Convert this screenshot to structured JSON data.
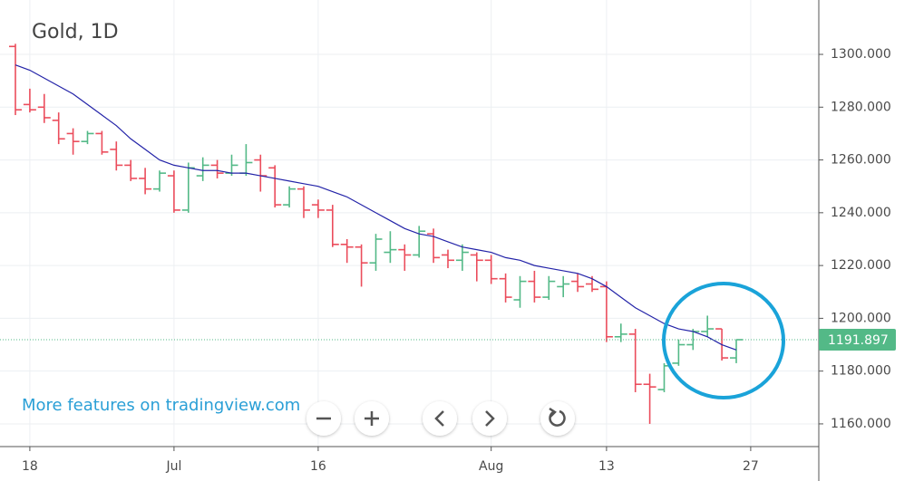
{
  "chart_data": {
    "type": "ohlc",
    "title": "Gold, 1D",
    "footer_text": "More features on tradingview.com",
    "categories": [
      null,
      "18",
      null,
      null,
      null,
      null,
      null,
      null,
      null,
      null,
      null,
      "Jul",
      null,
      null,
      null,
      null,
      null,
      null,
      null,
      null,
      null,
      "16",
      null,
      null,
      null,
      null,
      null,
      null,
      null,
      null,
      null,
      null,
      null,
      "Aug",
      null,
      null,
      null,
      null,
      null,
      null,
      null,
      "13",
      null,
      null,
      null,
      null,
      null,
      null,
      null,
      null,
      null,
      "27"
    ],
    "open": [
      1303,
      1281,
      1280,
      1275,
      1270,
      1267,
      1270,
      1264,
      1258,
      1253,
      1249,
      1254,
      1241,
      1254,
      1258,
      1255,
      1255,
      1260,
      1257,
      1243,
      1249,
      1243,
      1241,
      1228,
      1227,
      1221,
      1225,
      1226,
      1224,
      1232,
      1224,
      1222,
      1224,
      1222,
      1215,
      1207,
      1214,
      1208,
      1212,
      1214,
      1213,
      1212,
      1193,
      1194,
      1175,
      1173,
      1183,
      1190,
      1195,
      1196,
      1185,
      null
    ],
    "high": [
      1304,
      1287,
      1285,
      1278,
      1272,
      1271,
      1271,
      1267,
      1260,
      1257,
      1256,
      1256,
      1259,
      1261,
      1260,
      1262,
      1266,
      1262,
      1258,
      1250,
      1250,
      1245,
      1243,
      1230,
      1228,
      1232,
      1233,
      1228,
      1235,
      1234,
      1226,
      1228,
      1225,
      1224,
      1217,
      1216,
      1218,
      1216,
      1216,
      1217,
      1216,
      1214,
      1198,
      1196,
      1179,
      1183,
      1192,
      1196,
      1201,
      1196,
      1192,
      null
    ],
    "low": [
      1277,
      1278,
      1274,
      1266,
      1262,
      1266,
      1262,
      1256,
      1252,
      1247,
      1248,
      1240,
      1240,
      1252,
      1253,
      1254,
      1254,
      1248,
      1242,
      1242,
      1238,
      1238,
      1227,
      1221,
      1212,
      1218,
      1221,
      1218,
      1223,
      1221,
      1219,
      1218,
      1214,
      1213,
      1206,
      1204,
      1206,
      1207,
      1208,
      1210,
      1210,
      1191,
      1191,
      1172,
      1160,
      1172,
      1182,
      1188,
      1193,
      1184,
      1183,
      null
    ],
    "close": [
      1279,
      1279,
      1276,
      1268,
      1267,
      1270,
      1263,
      1258,
      1253,
      1249,
      1255,
      1241,
      1257,
      1258,
      1255,
      1258,
      1259,
      1254,
      1243,
      1249,
      1241,
      1241,
      1228,
      1227,
      1221,
      1230,
      1226,
      1224,
      1233,
      1223,
      1222,
      1225,
      1222,
      1215,
      1208,
      1214,
      1208,
      1214,
      1213,
      1212,
      1211,
      1193,
      1194,
      1175,
      1174,
      1182,
      1190,
      1195,
      1196,
      1185,
      1191.897,
      null
    ],
    "up_color": "#53b987",
    "down_color": "#eb4d5c",
    "moving_average": {
      "color": "#2323a8",
      "values": [
        1296,
        1294,
        1291,
        1288,
        1285,
        1281,
        1277,
        1273,
        1268,
        1264,
        1260,
        1258,
        1257,
        1256,
        1256,
        1255,
        1255,
        1254,
        1253,
        1252,
        1251,
        1250,
        1248,
        1246,
        1243,
        1240,
        1237,
        1234,
        1232,
        1231,
        1229,
        1227,
        1226,
        1225,
        1223,
        1222,
        1220,
        1219,
        1218,
        1217,
        1215,
        1212,
        1208,
        1204,
        1201,
        1198,
        1196,
        1195,
        1193,
        1190,
        1188,
        null
      ]
    },
    "last_price": 1191.897,
    "last_price_color": "#53b987",
    "ylim": [
      1151.4,
      1320.6
    ],
    "yticks": [
      {
        "value": 1160,
        "label": "1160.000"
      },
      {
        "value": 1180,
        "label": "1180.000"
      },
      {
        "value": 1200,
        "label": "1200.000"
      },
      {
        "value": 1220,
        "label": "1220.000"
      },
      {
        "value": 1240,
        "label": "1240.000"
      },
      {
        "value": 1260,
        "label": "1260.000"
      },
      {
        "value": 1280,
        "label": "1280.000"
      },
      {
        "value": 1300,
        "label": "1300.000"
      }
    ],
    "grid": true
  }
}
